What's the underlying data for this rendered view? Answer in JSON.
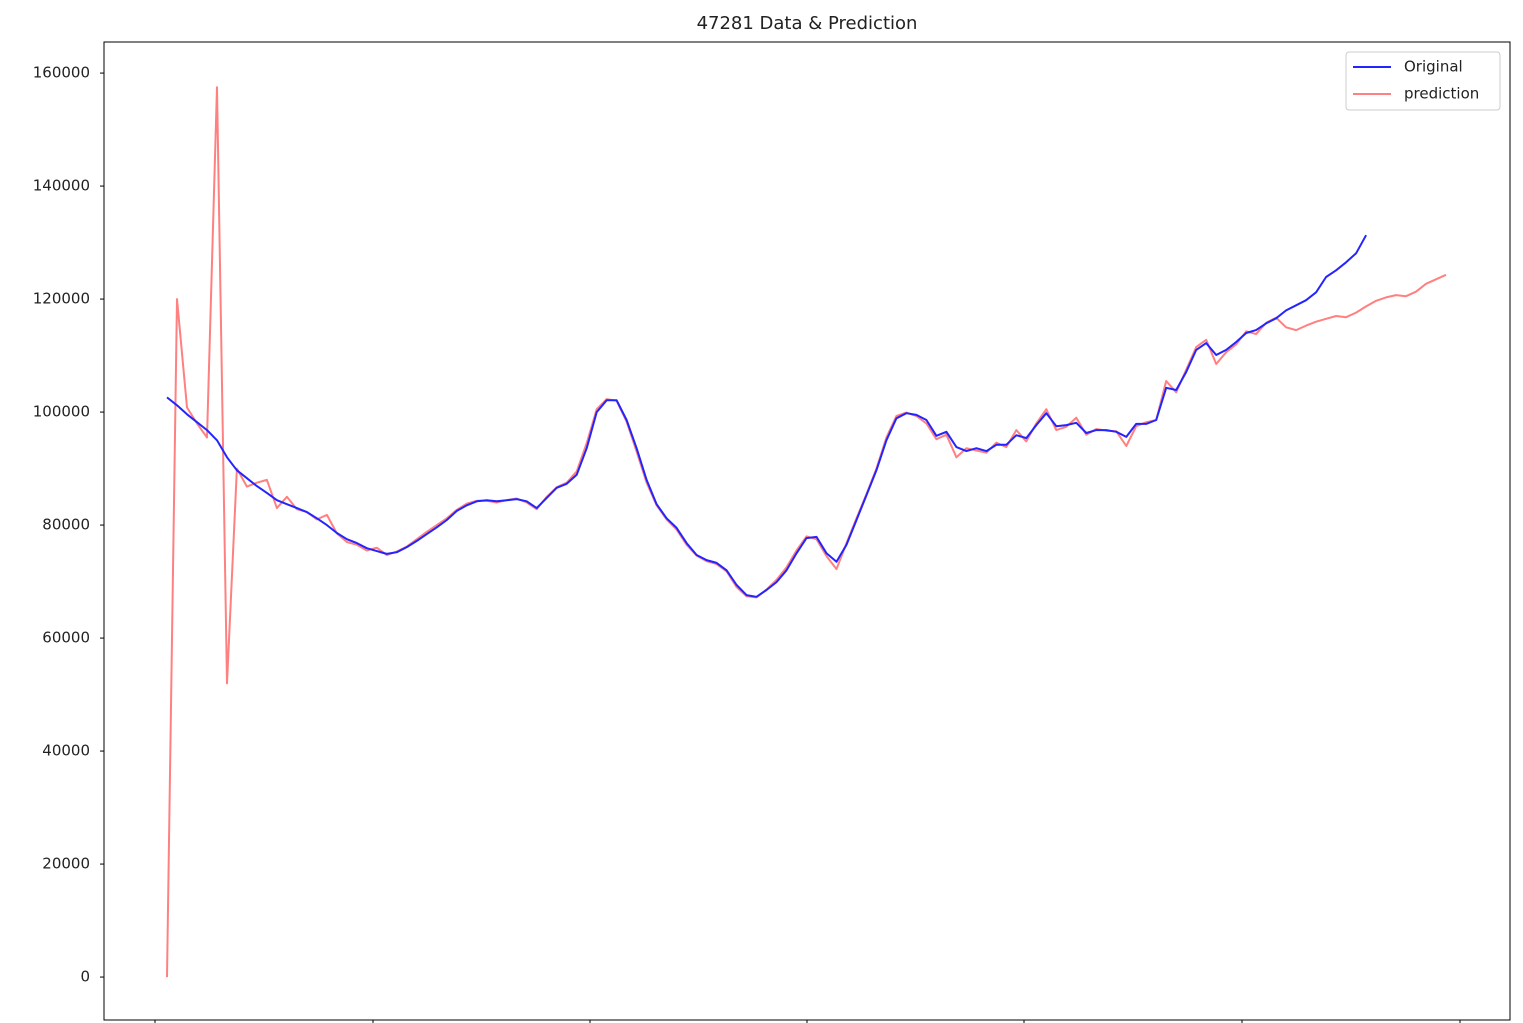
{
  "chart_data": {
    "type": "line",
    "title": "47281 Data & Prediction",
    "series": [
      {
        "name": "Original",
        "color": "#2424ff",
        "values": [
          102600,
          101200,
          99600,
          98200,
          96800,
          95000,
          92000,
          89700,
          88300,
          86900,
          85700,
          84400,
          83700,
          83000,
          82300,
          81200,
          80000,
          78600,
          77500,
          76800,
          75900,
          75400,
          74900,
          75200,
          76100,
          77200,
          78400,
          79600,
          80900,
          82500,
          83500,
          84200,
          84400,
          84200,
          84400,
          84600,
          84200,
          83000,
          84800,
          86600,
          87300,
          88900,
          93600,
          100000,
          102100,
          102100,
          98600,
          93600,
          88000,
          83700,
          81200,
          79500,
          76800,
          74700,
          73800,
          73300,
          72000,
          69400,
          67600,
          67300,
          68500,
          69900,
          72000,
          75000,
          77700,
          77900,
          75000,
          73500,
          76500,
          80900,
          85300,
          89700,
          95000,
          98900,
          99800,
          99500,
          98600,
          95800,
          96500,
          93800,
          93100,
          93600,
          93100,
          94200,
          94200,
          95900,
          95400,
          97700,
          99800,
          97500,
          97700,
          98100,
          96300,
          96800,
          96800,
          96500,
          95600,
          97900,
          97900,
          98600,
          104300,
          103900,
          107100,
          111000,
          112200,
          110100,
          111000,
          112400,
          114000,
          114500,
          115700,
          116600,
          118000,
          118900,
          119800,
          121200,
          123900,
          125100,
          126500,
          128100,
          131300,
          null,
          null,
          null,
          null,
          null,
          null,
          null,
          null
        ]
      },
      {
        "name": "prediction",
        "color": "#ff8080",
        "values": [
          0,
          120000,
          100800,
          98000,
          95500,
          157500,
          52000,
          90000,
          86800,
          87500,
          88000,
          83000,
          85000,
          82800,
          82300,
          81000,
          81800,
          78500,
          77000,
          76500,
          75500,
          76000,
          74700,
          75300,
          76200,
          77500,
          78800,
          80000,
          81200,
          82700,
          83800,
          84300,
          84300,
          84000,
          84400,
          84700,
          84000,
          82800,
          85000,
          86700,
          87500,
          89500,
          94500,
          100500,
          102300,
          102000,
          98300,
          93000,
          87500,
          83500,
          81000,
          79200,
          76500,
          74600,
          73600,
          73100,
          71800,
          69000,
          67400,
          67200,
          68600,
          70300,
          72500,
          75500,
          78000,
          77500,
          74500,
          72200,
          76800,
          81200,
          85500,
          90000,
          95500,
          99300,
          99900,
          99300,
          98000,
          95200,
          96000,
          92000,
          93600,
          93200,
          92800,
          94600,
          93800,
          96800,
          94800,
          98000,
          100500,
          96800,
          97400,
          99000,
          96000,
          97000,
          96700,
          96600,
          94000,
          97500,
          98200,
          98600,
          105500,
          103500,
          107500,
          111500,
          112800,
          108500,
          110600,
          112000,
          114300,
          113800,
          115800,
          116700,
          115000,
          114500,
          115300,
          116000,
          116500,
          117000,
          116800,
          117600,
          118700,
          119700,
          120300,
          120700,
          120500,
          121300,
          122700,
          123500,
          124300
        ]
      }
    ],
    "ylim": [
      -7600,
      165500
    ],
    "yticks": [
      0,
      20000,
      40000,
      60000,
      80000,
      100000,
      120000,
      140000,
      160000
    ],
    "legend": "upper right"
  }
}
